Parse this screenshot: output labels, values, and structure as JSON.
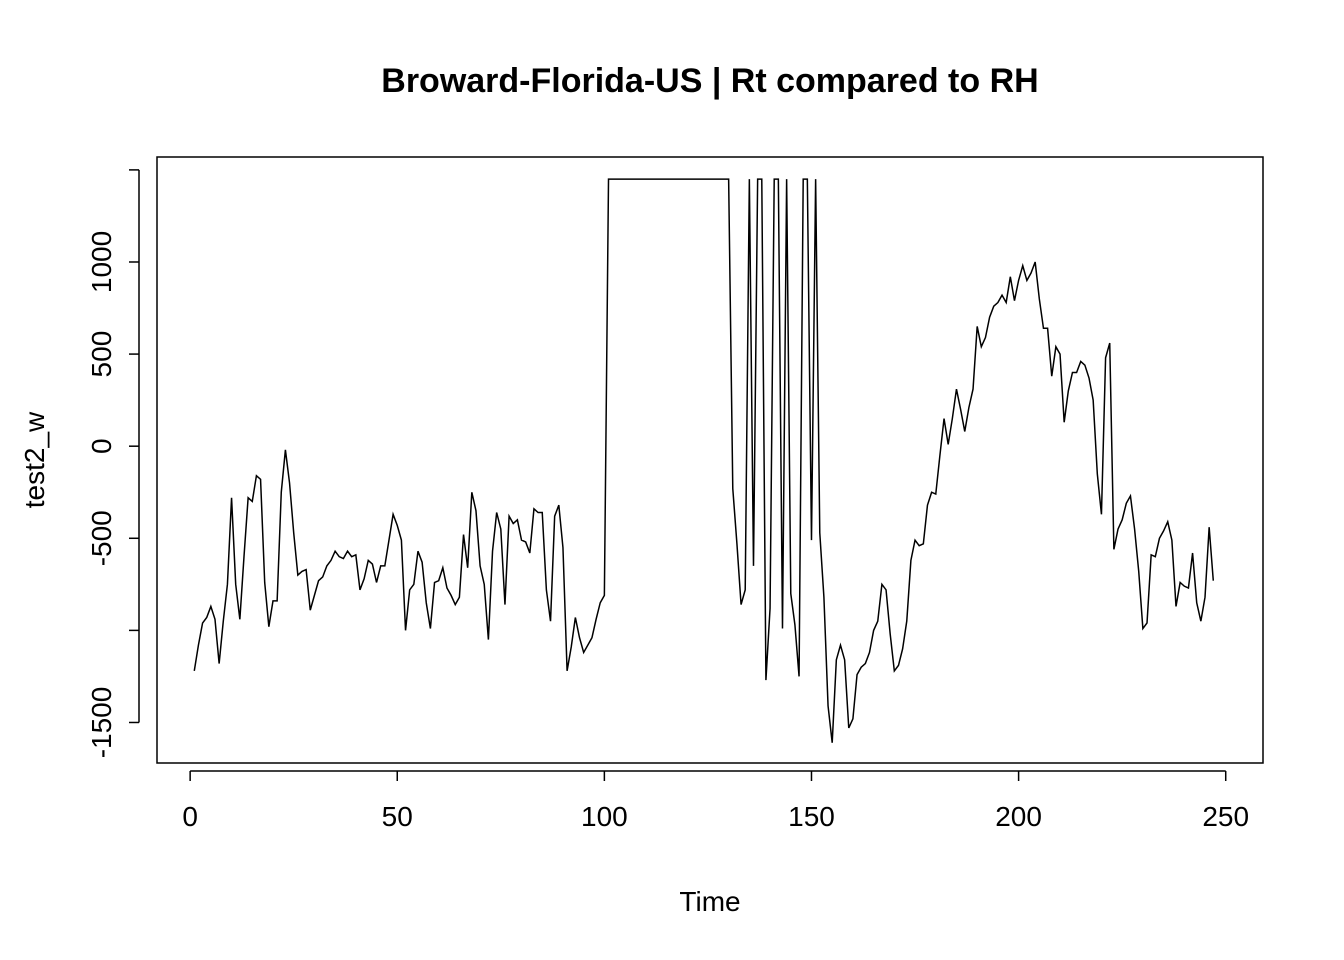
{
  "chart_data": {
    "type": "line",
    "title": "Broward-Florida-US | Rt compared to RH",
    "xlabel": "Time",
    "ylabel": "test2_w",
    "xlim": [
      -8,
      259
    ],
    "ylim": [
      -1720,
      1570
    ],
    "x_ticks": [
      0,
      50,
      100,
      150,
      200,
      250
    ],
    "x_tick_labels": [
      "0",
      "50",
      "100",
      "150",
      "200",
      "250"
    ],
    "y_ticks": [
      -1500,
      -1000,
      -500,
      0,
      500,
      1000,
      1500
    ],
    "y_tick_labels": [
      "-1500",
      "",
      "-500",
      "0",
      "500",
      "1000",
      ""
    ],
    "grid": false,
    "x_start": 1,
    "series": [
      {
        "values": [
          -1220,
          -1080,
          -960,
          -930,
          -870,
          -940,
          -1180,
          -950,
          -750,
          -280,
          -750,
          -940,
          -600,
          -280,
          -300,
          -160,
          -180,
          -740,
          -980,
          -840,
          -840,
          -250,
          -20,
          -200,
          -470,
          -700,
          -680,
          -670,
          -890,
          -810,
          -730,
          -710,
          -650,
          -620,
          -570,
          -600,
          -610,
          -570,
          -600,
          -590,
          -780,
          -720,
          -620,
          -640,
          -740,
          -650,
          -650,
          -510,
          -370,
          -430,
          -510,
          -1000,
          -780,
          -750,
          -570,
          -630,
          -850,
          -990,
          -740,
          -730,
          -660,
          -770,
          -810,
          -860,
          -820,
          -480,
          -660,
          -250,
          -350,
          -650,
          -750,
          -1050,
          -570,
          -360,
          -450,
          -860,
          -380,
          -420,
          -400,
          -510,
          -520,
          -580,
          -340,
          -360,
          -360,
          -780,
          -950,
          -380,
          -320,
          -550,
          -1220,
          -1090,
          -930,
          -1040,
          -1120,
          -1080,
          -1040,
          -940,
          -850,
          -810,
          1450,
          1450,
          1450,
          1450,
          1450,
          1450,
          1450,
          1450,
          1450,
          1450,
          1450,
          1450,
          1450,
          1450,
          1450,
          1450,
          1450,
          1450,
          1450,
          1450,
          1450,
          1450,
          1450,
          1450,
          1450,
          1450,
          1450,
          1450,
          1450,
          1450,
          -230,
          -530,
          -860,
          -780,
          1450,
          -650,
          1450,
          1450,
          -1270,
          -880,
          1450,
          1450,
          -990,
          1450,
          -800,
          -970,
          -1250,
          1450,
          1450,
          -510,
          1450,
          -470,
          -820,
          -1410,
          -1610,
          -1160,
          -1080,
          -1160,
          -1530,
          -1480,
          -1240,
          -1200,
          -1180,
          -1120,
          -1000,
          -950,
          -750,
          -780,
          -1020,
          -1220,
          -1190,
          -1100,
          -950,
          -620,
          -510,
          -540,
          -530,
          -320,
          -250,
          -260,
          -50,
          150,
          10,
          150,
          310,
          200,
          80,
          210,
          310,
          650,
          540,
          590,
          700,
          760,
          780,
          820,
          780,
          920,
          790,
          900,
          980,
          900,
          940,
          1000,
          800,
          640,
          640,
          380,
          540,
          500,
          130,
          300,
          400,
          400,
          460,
          440,
          370,
          250,
          -150,
          -370,
          480,
          560,
          -560,
          -450,
          -400,
          -310,
          -270,
          -450,
          -680,
          -990,
          -960,
          -590,
          -600,
          -500,
          -460,
          -410,
          -510,
          -870,
          -740,
          -760,
          -770,
          -580,
          -850,
          -950,
          -820,
          -440,
          -730
        ]
      }
    ]
  }
}
